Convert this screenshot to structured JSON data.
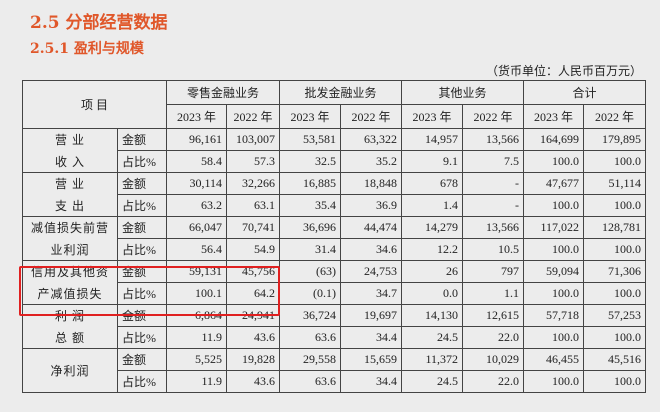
{
  "section_title": "2.5  分部经营数据",
  "subsection_title": "2.5.1  盈利与规模",
  "unit_note": "（货币单位：人民币百万元）",
  "header": {
    "item": "项  目",
    "groups": [
      "零售金融业务",
      "批发金融业务",
      "其他业务",
      "合计"
    ],
    "years": [
      "2023 年",
      "2022 年",
      "2023 年",
      "2022 年",
      "2023 年",
      "2022 年",
      "2023 年",
      "2022 年"
    ]
  },
  "highlight_color": "#e02020",
  "rows": [
    {
      "label": [
        "营 业",
        "收 入"
      ],
      "amount": [
        "金额",
        "96,161",
        "103,007",
        "53,581",
        "63,322",
        "14,957",
        "13,566",
        "164,699",
        "179,895"
      ],
      "share": [
        "占比%",
        "58.4",
        "57.3",
        "32.5",
        "35.2",
        "9.1",
        "7.5",
        "100.0",
        "100.0"
      ]
    },
    {
      "label": [
        "营 业",
        "支 出"
      ],
      "amount": [
        "金额",
        "30,114",
        "32,266",
        "16,885",
        "18,848",
        "678",
        "-",
        "47,677",
        "51,114"
      ],
      "share": [
        "占比%",
        "63.2",
        "63.1",
        "35.4",
        "36.9",
        "1.4",
        "-",
        "100.0",
        "100.0"
      ]
    },
    {
      "label": [
        "减值损失前营",
        "业利润"
      ],
      "amount": [
        "金额",
        "66,047",
        "70,741",
        "36,696",
        "44,474",
        "14,279",
        "13,566",
        "117,022",
        "128,781"
      ],
      "share": [
        "占比%",
        "56.4",
        "54.9",
        "31.4",
        "34.6",
        "12.2",
        "10.5",
        "100.0",
        "100.0"
      ]
    },
    {
      "label": [
        "信用及其他资",
        "产减值损失"
      ],
      "amount": [
        "金额",
        "59,131",
        "45,756",
        "(63)",
        "24,753",
        "26",
        "797",
        "59,094",
        "71,306"
      ],
      "share": [
        "占比%",
        "100.1",
        "64.2",
        "(0.1)",
        "34.7",
        "0.0",
        "1.1",
        "100.0",
        "100.0"
      ]
    },
    {
      "label": [
        "利 润",
        "总 额"
      ],
      "amount": [
        "金额",
        "6,864",
        "24,941",
        "36,724",
        "19,697",
        "14,130",
        "12,615",
        "57,718",
        "57,253"
      ],
      "share": [
        "占比%",
        "11.9",
        "43.6",
        "63.6",
        "34.4",
        "24.5",
        "22.0",
        "100.0",
        "100.0"
      ]
    },
    {
      "label": [
        "净利润",
        ""
      ],
      "merged": true,
      "amount": [
        "金额",
        "5,525",
        "19,828",
        "29,558",
        "15,659",
        "11,372",
        "10,029",
        "46,455",
        "45,516"
      ],
      "share": [
        "占比%",
        "11.9",
        "43.6",
        "63.6",
        "34.4",
        "24.5",
        "22.0",
        "100.0",
        "100.0"
      ]
    }
  ]
}
